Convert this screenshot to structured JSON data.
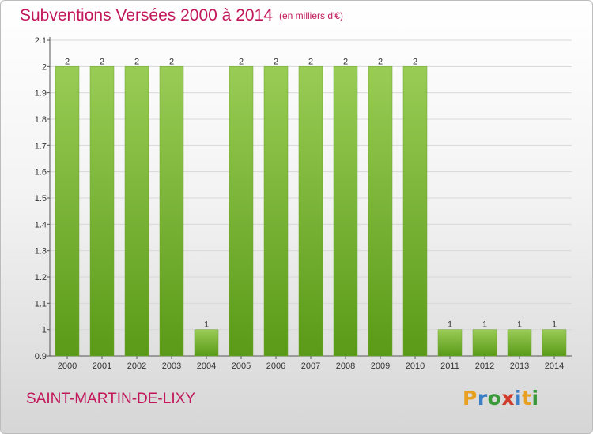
{
  "header": {
    "title": "Subventions Versées 2000 à 2014",
    "subtitle": "(en milliers d'€)"
  },
  "footer": {
    "commune": "SAINT-MARTIN-DE-LIXY",
    "logo": "Proxiti"
  },
  "colors": {
    "bar_top": "#99cc55",
    "bar_bottom": "#5a9a18",
    "title": "#c2185b",
    "logo_p": "#e8a020",
    "logo_r": "#3a7fc8",
    "logo_o": "#3a9a3a",
    "logo_x": "#d03a2a",
    "logo_i": "#3a7fc8",
    "logo_t": "#e8a020",
    "logo_i2": "#3a9a3a"
  },
  "chart_data": {
    "type": "bar",
    "title": "Subventions Versées 2000 à 2014",
    "subtitle": "(en milliers d'€)",
    "categories": [
      "2000",
      "2001",
      "2002",
      "2003",
      "2004",
      "2005",
      "2006",
      "2007",
      "2008",
      "2009",
      "2010",
      "2011",
      "2012",
      "2013",
      "2014"
    ],
    "values": [
      2,
      2,
      2,
      2,
      1,
      2,
      2,
      2,
      2,
      2,
      2,
      1,
      1,
      1,
      1
    ],
    "data_labels": [
      "2",
      "2",
      "2",
      "2",
      "1",
      "2",
      "2",
      "2",
      "2",
      "2",
      "2",
      "1",
      "1",
      "1",
      "1"
    ],
    "ylim": [
      0.9,
      2.1
    ],
    "yticks": [
      0.9,
      1,
      1.1,
      1.2,
      1.3,
      1.4,
      1.5,
      1.6,
      1.7,
      1.8,
      1.9,
      2,
      2.1
    ],
    "ytick_labels": [
      "0.9",
      "1",
      "1.1",
      "1.2",
      "1.3",
      "1.4",
      "1.5",
      "1.6",
      "1.7",
      "1.8",
      "1.9",
      "2",
      "2.1"
    ],
    "grid": true,
    "legend": "none"
  }
}
